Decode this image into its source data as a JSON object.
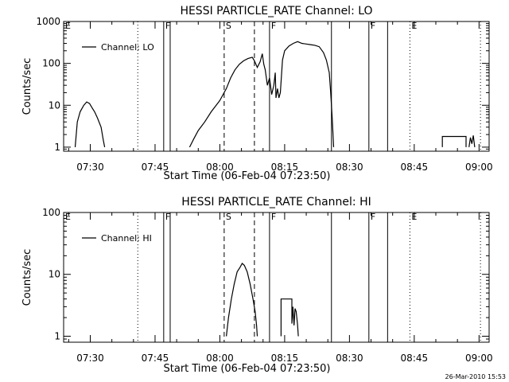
{
  "chart_data": [
    {
      "type": "line",
      "title": "HESSI PARTICLE_RATE Channel: LO",
      "xlabel": "Start Time (06-Feb-04 07:23:50)",
      "ylabel": "Counts/sec",
      "yscale": "log",
      "xlim": [
        "07:23:50",
        "09:02:20"
      ],
      "ylim": [
        0.8,
        1000
      ],
      "xticks": [
        "07:30",
        "07:45",
        "08:00",
        "08:15",
        "08:30",
        "08:45",
        "09:00"
      ],
      "yticks": [
        "1",
        "10",
        "100",
        "1000"
      ],
      "legend": {
        "position": "top-left",
        "label": "Channel: LO"
      },
      "series": [
        {
          "name": "Channel: LO",
          "segments": [
            [
              [
                "07:26:30",
                1
              ],
              [
                "07:27:00",
                4
              ],
              [
                "07:27:40",
                7
              ],
              [
                "07:28:30",
                10
              ],
              [
                "07:29:10",
                12
              ],
              [
                "07:29:50",
                11
              ],
              [
                "07:30:20",
                9
              ],
              [
                "07:31:00",
                7
              ],
              [
                "07:31:40",
                5
              ],
              [
                "07:32:30",
                3
              ],
              [
                "07:33:00",
                1.5
              ],
              [
                "07:33:20",
                1
              ]
            ],
            [
              [
                "07:53:00",
                1
              ],
              [
                "07:54:00",
                1.6
              ],
              [
                "07:55:00",
                2.5
              ],
              [
                "07:56:30",
                4
              ],
              [
                "07:58:00",
                7
              ],
              [
                "08:00:00",
                13
              ],
              [
                "08:01:30",
                25
              ],
              [
                "08:02:30",
                45
              ],
              [
                "08:03:30",
                70
              ],
              [
                "08:04:30",
                95
              ],
              [
                "08:05:30",
                115
              ],
              [
                "08:06:30",
                130
              ],
              [
                "08:07:30",
                140
              ],
              [
                "08:08:00",
                115
              ],
              [
                "08:08:40",
                80
              ],
              [
                "08:09:20",
                110
              ],
              [
                "08:09:50",
                170
              ],
              [
                "08:10:10",
                95
              ],
              [
                "08:10:30",
                70
              ],
              [
                "08:11:00",
                30
              ],
              [
                "08:11:30",
                45
              ],
              [
                "08:12:00",
                18
              ],
              [
                "08:12:30",
                30
              ],
              [
                "08:12:50",
                60
              ],
              [
                "08:13:00",
                15
              ],
              [
                "08:13:20",
                25
              ],
              [
                "08:13:40",
                15
              ],
              [
                "08:14:00",
                20
              ],
              [
                "08:14:30",
                120
              ],
              [
                "08:15:00",
                200
              ],
              [
                "08:16:00",
                260
              ],
              [
                "08:17:00",
                300
              ],
              [
                "08:18:00",
                330
              ],
              [
                "08:19:00",
                300
              ],
              [
                "08:20:00",
                290
              ],
              [
                "08:21:00",
                280
              ],
              [
                "08:22:00",
                270
              ],
              [
                "08:23:00",
                250
              ],
              [
                "08:24:00",
                180
              ],
              [
                "08:24:40",
                120
              ],
              [
                "08:25:20",
                60
              ],
              [
                "08:25:40",
                20
              ],
              [
                "08:26:00",
                5
              ],
              [
                "08:26:20",
                1
              ]
            ],
            [
              [
                "08:51:30",
                1
              ],
              [
                "08:51:30",
                1.8
              ],
              [
                "08:57:00",
                1.8
              ],
              [
                "08:57:00",
                1
              ]
            ],
            [
              [
                "08:57:40",
                1
              ],
              [
                "08:58:00",
                1.7
              ],
              [
                "08:58:20",
                1.2
              ],
              [
                "08:58:40",
                1.9
              ],
              [
                "08:59:00",
                1
              ]
            ]
          ]
        }
      ]
    },
    {
      "type": "line",
      "title": "HESSI PARTICLE_RATE Channel: HI",
      "xlabel": "Start Time (06-Feb-04 07:23:50)",
      "ylabel": "Counts/sec",
      "yscale": "log",
      "xlim": [
        "07:23:50",
        "09:02:20"
      ],
      "ylim": [
        0.8,
        100
      ],
      "xticks": [
        "07:30",
        "07:45",
        "08:00",
        "08:15",
        "08:30",
        "08:45",
        "09:00"
      ],
      "yticks": [
        "1",
        "10",
        "100"
      ],
      "legend": {
        "position": "top-left",
        "label": "Channel: HI"
      },
      "series": [
        {
          "name": "Channel: HI",
          "segments": [
            [
              [
                "08:01:30",
                1
              ],
              [
                "08:02:00",
                2
              ],
              [
                "08:02:40",
                4
              ],
              [
                "08:03:20",
                7
              ],
              [
                "08:04:00",
                11
              ],
              [
                "08:04:40",
                13
              ],
              [
                "08:05:10",
                15
              ],
              [
                "08:05:40",
                14
              ],
              [
                "08:06:20",
                11
              ],
              [
                "08:07:00",
                7
              ],
              [
                "08:07:40",
                4
              ],
              [
                "08:08:10",
                2.5
              ],
              [
                "08:08:30",
                1.5
              ],
              [
                "08:08:40",
                1
              ]
            ],
            [
              [
                "08:14:10",
                1
              ],
              [
                "08:14:10",
                4
              ],
              [
                "08:16:40",
                4
              ],
              [
                "08:16:40",
                1.6
              ],
              [
                "08:16:55",
                3
              ],
              [
                "08:17:10",
                1.5
              ],
              [
                "08:17:25",
                2.8
              ],
              [
                "08:17:40",
                2.5
              ],
              [
                "08:18:00",
                1.5
              ],
              [
                "08:18:10",
                1
              ]
            ]
          ]
        }
      ]
    }
  ],
  "markers": [
    {
      "label": "E",
      "time": "07:23:50",
      "style": "dotted"
    },
    {
      "label": "",
      "time": "07:41:00",
      "style": "dotted"
    },
    {
      "label": "F",
      "time": "07:47:00",
      "style": "solid"
    },
    {
      "label": "",
      "time": "07:48:30",
      "style": "solid"
    },
    {
      "label": "S",
      "time": "08:01:00",
      "style": "dashed"
    },
    {
      "label": "",
      "time": "08:08:00",
      "style": "dashed"
    },
    {
      "label": "F",
      "time": "08:11:30",
      "style": "solid"
    },
    {
      "label": "",
      "time": "08:25:50",
      "style": "solid"
    },
    {
      "label": "F",
      "time": "08:34:30",
      "style": "solid"
    },
    {
      "label": "",
      "time": "08:38:50",
      "style": "solid"
    },
    {
      "label": "E",
      "time": "08:44:00",
      "style": "dotted"
    },
    {
      "label": "",
      "time": "09:00:20",
      "style": "dotted"
    }
  ],
  "footer": {
    "timestamp": "26-Mar-2010 15:53"
  }
}
